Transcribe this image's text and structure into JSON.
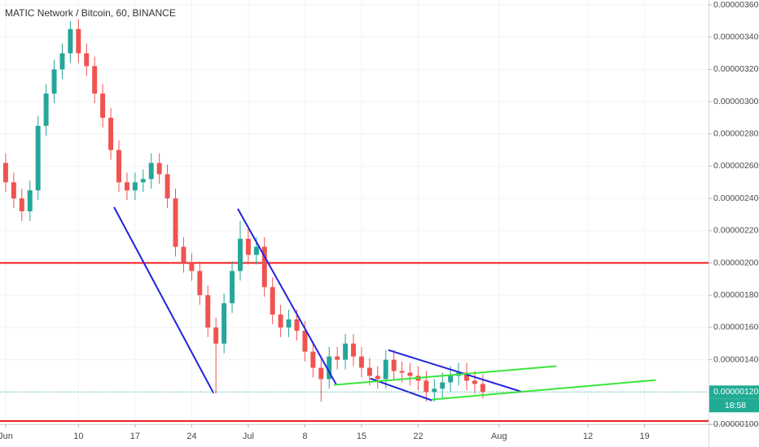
{
  "chart_data": {
    "type": "candlestick",
    "title": "MATIC Network / Bitcoin, 60, BINANCE",
    "xlim": [
      0.3,
      87.9
    ],
    "xticks": [
      {
        "value": 1,
        "label": "Jun"
      },
      10,
      17,
      24,
      {
        "value": 31,
        "label": "Jul"
      },
      {
        "value": 38,
        "label": "8"
      },
      {
        "value": 45,
        "label": "15"
      },
      {
        "value": 52,
        "label": "22"
      },
      {
        "value": 62,
        "label": "Aug"
      },
      {
        "value": 73,
        "label": "12"
      },
      {
        "value": 80,
        "label": "19"
      }
    ],
    "ylim": [
      1e-06,
      3.63e-06
    ],
    "yticks": [
      {
        "value": 1e-06,
        "label": "0.00000100"
      },
      {
        "value": 1.2e-06,
        "label": "0.00000120"
      },
      {
        "value": 1.4e-06,
        "label": "0.00000140"
      },
      {
        "value": 1.6e-06,
        "label": "0.00000160"
      },
      {
        "value": 1.8e-06,
        "label": "0.00000180"
      },
      {
        "value": 2e-06,
        "label": "0.00000200"
      },
      {
        "value": 2.2e-06,
        "label": "0.00000220"
      },
      {
        "value": 2.4e-06,
        "label": "0.00000240"
      },
      {
        "value": 2.6e-06,
        "label": "0.00000260"
      },
      {
        "value": 2.8e-06,
        "label": "0.00000280"
      },
      {
        "value": 3e-06,
        "label": "0.00000300"
      },
      {
        "value": 3.2e-06,
        "label": "0.00000320"
      },
      {
        "value": 3.4e-06,
        "label": "0.00000340"
      },
      {
        "value": 3.6e-06,
        "label": "0.00000360"
      }
    ],
    "grid": true,
    "up_color": "#26a69a",
    "down_color": "#ef5350",
    "x": [
      1,
      2,
      3,
      4,
      5,
      6,
      7,
      8,
      9,
      10,
      11,
      12,
      13,
      14,
      15,
      16,
      17,
      18,
      19,
      20,
      21,
      22,
      23,
      24,
      25,
      26,
      27,
      28,
      29,
      30,
      31,
      32,
      33,
      34,
      35,
      36,
      37,
      38,
      39,
      40,
      41,
      42,
      43,
      44,
      45,
      46,
      47,
      48,
      49,
      50,
      51,
      52,
      53,
      54,
      55,
      56,
      57,
      58,
      59,
      60
    ],
    "open": [
      2.62e-06,
      2.5e-06,
      2.4e-06,
      2.32e-06,
      2.45e-06,
      2.85e-06,
      3.05e-06,
      3.2e-06,
      3.3e-06,
      3.45e-06,
      3.3e-06,
      3.22e-06,
      3.05e-06,
      2.9e-06,
      2.7e-06,
      2.5e-06,
      2.45e-06,
      2.5e-06,
      2.52e-06,
      2.62e-06,
      2.55e-06,
      2.4e-06,
      2.1e-06,
      2e-06,
      1.95e-06,
      1.8e-06,
      1.6e-06,
      1.5e-06,
      1.75e-06,
      1.95e-06,
      2.15e-06,
      2.05e-06,
      2.1e-06,
      1.85e-06,
      1.68e-06,
      1.6e-06,
      1.65e-06,
      1.58e-06,
      1.45e-06,
      1.35e-06,
      1.28e-06,
      1.42e-06,
      1.4e-06,
      1.5e-06,
      1.42e-06,
      1.35e-06,
      1.3e-06,
      1.28e-06,
      1.4e-06,
      1.33e-06,
      1.32e-06,
      1.3e-06,
      1.27e-06,
      1.2e-06,
      1.22e-06,
      1.26e-06,
      1.3e-06,
      1.32e-06,
      1.27e-06,
      1.25e-06
    ],
    "high": [
      2.68e-06,
      2.56e-06,
      2.46e-06,
      2.51e-06,
      2.91e-06,
      3.11e-06,
      3.26e-06,
      3.36e-06,
      3.5e-06,
      3.51e-06,
      3.36e-06,
      3.28e-06,
      3.11e-06,
      2.96e-06,
      2.76e-06,
      2.56e-06,
      2.56e-06,
      2.58e-06,
      2.68e-06,
      2.68e-06,
      2.61e-06,
      2.46e-06,
      2.16e-06,
      2.06e-06,
      2.01e-06,
      1.86e-06,
      1.66e-06,
      1.81e-06,
      2.01e-06,
      2.26e-06,
      2.21e-06,
      2.16e-06,
      2.16e-06,
      1.91e-06,
      1.74e-06,
      1.71e-06,
      1.71e-06,
      1.64e-06,
      1.51e-06,
      1.41e-06,
      1.48e-06,
      1.48e-06,
      1.56e-06,
      1.56e-06,
      1.48e-06,
      1.41e-06,
      1.36e-06,
      1.46e-06,
      1.46e-06,
      1.39e-06,
      1.38e-06,
      1.36e-06,
      1.33e-06,
      1.28e-06,
      1.32e-06,
      1.36e-06,
      1.38e-06,
      1.38e-06,
      1.33e-06,
      1.31e-06
    ],
    "low": [
      2.44e-06,
      2.34e-06,
      2.26e-06,
      2.26e-06,
      2.39e-06,
      2.79e-06,
      2.99e-06,
      3.14e-06,
      3.24e-06,
      3.24e-06,
      3.16e-06,
      2.99e-06,
      2.84e-06,
      2.64e-06,
      2.44e-06,
      2.39e-06,
      2.39e-06,
      2.44e-06,
      2.46e-06,
      2.49e-06,
      2.34e-06,
      2.04e-06,
      1.94e-06,
      1.89e-06,
      1.74e-06,
      1.54e-06,
      1.19e-06,
      1.44e-06,
      1.69e-06,
      1.89e-06,
      1.99e-06,
      1.99e-06,
      1.79e-06,
      1.62e-06,
      1.54e-06,
      1.54e-06,
      1.52e-06,
      1.39e-06,
      1.29e-06,
      1.14e-06,
      1.22e-06,
      1.34e-06,
      1.34e-06,
      1.36e-06,
      1.29e-06,
      1.24e-06,
      1.22e-06,
      1.22e-06,
      1.27e-06,
      1.26e-06,
      1.24e-06,
      1.21e-06,
      1.14e-06,
      1.14e-06,
      1.16e-06,
      1.2e-06,
      1.24e-06,
      1.21e-06,
      1.19e-06,
      1.16e-06
    ],
    "close": [
      2.5e-06,
      2.4e-06,
      2.32e-06,
      2.45e-06,
      2.85e-06,
      3.05e-06,
      3.2e-06,
      3.3e-06,
      3.45e-06,
      3.3e-06,
      3.22e-06,
      3.05e-06,
      2.9e-06,
      2.7e-06,
      2.5e-06,
      2.45e-06,
      2.5e-06,
      2.52e-06,
      2.62e-06,
      2.55e-06,
      2.4e-06,
      2.1e-06,
      2e-06,
      1.95e-06,
      1.8e-06,
      1.6e-06,
      1.5e-06,
      1.75e-06,
      1.95e-06,
      2.15e-06,
      2.05e-06,
      2.1e-06,
      1.85e-06,
      1.68e-06,
      1.6e-06,
      1.65e-06,
      1.58e-06,
      1.45e-06,
      1.35e-06,
      1.28e-06,
      1.42e-06,
      1.4e-06,
      1.5e-06,
      1.42e-06,
      1.35e-06,
      1.3e-06,
      1.28e-06,
      1.4e-06,
      1.33e-06,
      1.32e-06,
      1.3e-06,
      1.27e-06,
      1.2e-06,
      1.22e-06,
      1.26e-06,
      1.3e-06,
      1.32e-06,
      1.27e-06,
      1.25e-06,
      1.2e-06
    ],
    "hlines": [
      {
        "value": 2e-06,
        "color": "#f01e1e"
      },
      {
        "value": 1.02e-06,
        "color": "#f01e1e"
      }
    ],
    "trendlines": [
      {
        "color": "#2222dd",
        "x": [
          14.4,
          26.7
        ],
        "y": [
          2.346e-06,
          1.193e-06
        ]
      },
      {
        "color": "#2222dd",
        "x": [
          29.7,
          41.9
        ],
        "y": [
          2.336e-06,
          1.244e-06
        ]
      },
      {
        "color": "#2222dd",
        "x": [
          48.3,
          64.7
        ],
        "y": [
          1.46e-06,
          1.203e-06
        ]
      },
      {
        "color": "#2222dd",
        "x": [
          46.1,
          53.7
        ],
        "y": [
          1.284e-06,
          1.148e-06
        ]
      },
      {
        "color": "#39e639",
        "x": [
          41.6,
          69.1
        ],
        "y": [
          1.244e-06,
          1.36e-06
        ]
      },
      {
        "color": "#39e639",
        "x": [
          53.7,
          81.4
        ],
        "y": [
          1.153e-06,
          1.274e-06
        ]
      }
    ],
    "last_price": {
      "value": 1.2e-06,
      "label": "0.00000120",
      "color": "#22ab94"
    },
    "countdown": "18:58"
  }
}
